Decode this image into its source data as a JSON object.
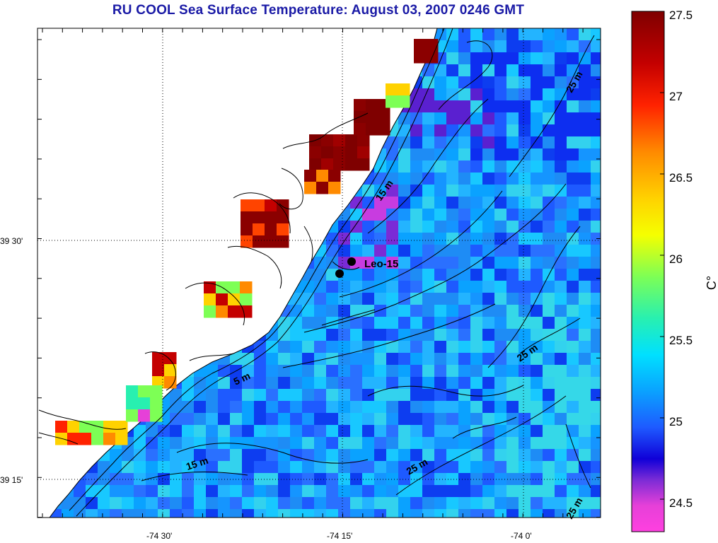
{
  "title": "RU COOL  Sea Surface Temperature:  August 03, 2007 0246 GMT",
  "axes": {
    "y_ticks": [
      "39 30'",
      "39 15'"
    ],
    "x_ticks": [
      "-74 30'",
      "-74 15'",
      "-74 0'"
    ]
  },
  "contours": {
    "labels": [
      "5 m",
      "15 m",
      "15 m",
      "25 m",
      "25 m",
      "25 m",
      "25 m"
    ]
  },
  "station": {
    "label": "Leo-15"
  },
  "colorbar": {
    "unit_label": "C°",
    "ticks": [
      "27.5",
      "27",
      "26.5",
      "26",
      "25.5",
      "25",
      "24.5"
    ],
    "min": 24.3,
    "max": 27.5
  },
  "colors": {
    "title": "#1a1aa6",
    "land": "#ffffff",
    "gridline": "#000000"
  }
}
